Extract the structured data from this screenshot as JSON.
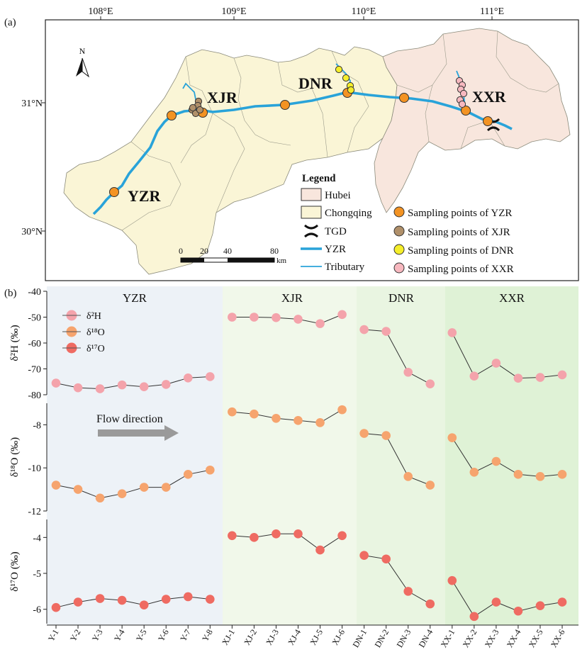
{
  "panel_labels": {
    "a": "(a)",
    "b": "(b)"
  },
  "map": {
    "lon_ticks": [
      "108°E",
      "109°E",
      "110°E",
      "111°E"
    ],
    "lat_ticks": [
      "31°N",
      "30°N"
    ],
    "north": "N",
    "river_labels": {
      "yzr": "YZR",
      "xjr": "XJR",
      "dnr": "DNR",
      "xxr": "XXR"
    },
    "legend": {
      "title": "Legend",
      "hubei": "Hubei",
      "chongqing": "Chongqing",
      "tgd": "TGD",
      "yzr": "YZR",
      "tributary": "Tributary",
      "pt_yzr": "Sampling points of YZR",
      "pt_xjr": "Sampling points of XJR",
      "pt_dnr": "Sampling points of DNR",
      "pt_xxr": "Sampling points of XXR"
    },
    "scalebar": {
      "t0": "0",
      "t20": "20",
      "t40": "40",
      "t80": "80",
      "unit": "km"
    },
    "colors": {
      "hubei": "#f8e6dd",
      "chongqing": "#faf5d6",
      "river": "#29a3d9",
      "yzr_pt": "#f39323",
      "xjr_pt": "#b0906a",
      "dnr_pt": "#f5ee2a",
      "xxr_pt": "#f7b8bf",
      "yzr_lbl": "#5a78c0",
      "xjr_lbl": "#a6d08c",
      "dnr_lbl": "#4c8a2d",
      "xxr_lbl": "#3b5a22"
    }
  },
  "chart_data": {
    "type": "line",
    "sections": [
      "YZR",
      "XJR",
      "DNR",
      "XXR"
    ],
    "section_colors": [
      "#edf2f7",
      "#f1f8ea",
      "#e9f5e1",
      "#dff2d6"
    ],
    "categories": [
      "Y-1",
      "Y-2",
      "Y-3",
      "Y-4",
      "Y-5",
      "Y-6",
      "Y-7",
      "Y-8",
      "XJ-1",
      "XJ-2",
      "XJ-3",
      "XJ-4",
      "XJ-5",
      "XJ-6",
      "DN-1",
      "DN-2",
      "DN-3",
      "DN-4",
      "XX-1",
      "XX-2",
      "XX-3",
      "XX-4",
      "XX-5",
      "XX-6"
    ],
    "groups": [
      8,
      6,
      4,
      6
    ],
    "legend": [
      "δ²H",
      "δ¹⁸O",
      "δ¹⁷O"
    ],
    "annotation": "Flow direction",
    "series": [
      {
        "name": "d2H",
        "ylabel": "δ²H (‰)",
        "color": "#f4a3ab",
        "ylim": [
          -80,
          -40
        ],
        "yticks": [
          "-40",
          "-50",
          "-60",
          "-70",
          "-80"
        ],
        "ytick_values": [
          -40,
          -50,
          -60,
          -70,
          -80
        ],
        "values": [
          -75.5,
          -77.3,
          -77.7,
          -76.2,
          -76.9,
          -76.0,
          -73.5,
          -73.0,
          -50.0,
          -50.0,
          -50.2,
          -50.8,
          -52.5,
          -49.0,
          -54.8,
          -55.5,
          -71.3,
          -75.8,
          -56.0,
          -72.8,
          -67.8,
          -73.6,
          -73.3,
          -72.3
        ]
      },
      {
        "name": "d18O",
        "ylabel": "δ¹⁸O (‰)",
        "color": "#f6a46e",
        "ylim": [
          -12,
          -7
        ],
        "yticks": [
          "-8",
          "-10",
          "-12"
        ],
        "ytick_values": [
          -8,
          -10,
          -12
        ],
        "values": [
          -10.8,
          -11.0,
          -11.4,
          -11.2,
          -10.9,
          -10.9,
          -10.3,
          -10.1,
          -7.4,
          -7.5,
          -7.7,
          -7.8,
          -7.9,
          -7.3,
          -8.4,
          -8.5,
          -10.4,
          -10.8,
          -8.6,
          -10.2,
          -9.7,
          -10.3,
          -10.4,
          -10.3
        ]
      },
      {
        "name": "d17O",
        "ylabel": "δ¹⁷O (‰)",
        "color": "#ef6b62",
        "ylim": [
          -6.4,
          -3.5
        ],
        "yticks": [
          "-4",
          "-5",
          "-6"
        ],
        "ytick_values": [
          -4,
          -5,
          -6
        ],
        "values": [
          -5.95,
          -5.8,
          -5.7,
          -5.75,
          -5.88,
          -5.72,
          -5.65,
          -5.72,
          -3.95,
          -4.0,
          -3.9,
          -3.9,
          -4.35,
          -3.95,
          -4.5,
          -4.6,
          -5.5,
          -5.85,
          -5.2,
          -6.2,
          -5.8,
          -6.05,
          -5.9,
          -5.8
        ]
      }
    ]
  }
}
